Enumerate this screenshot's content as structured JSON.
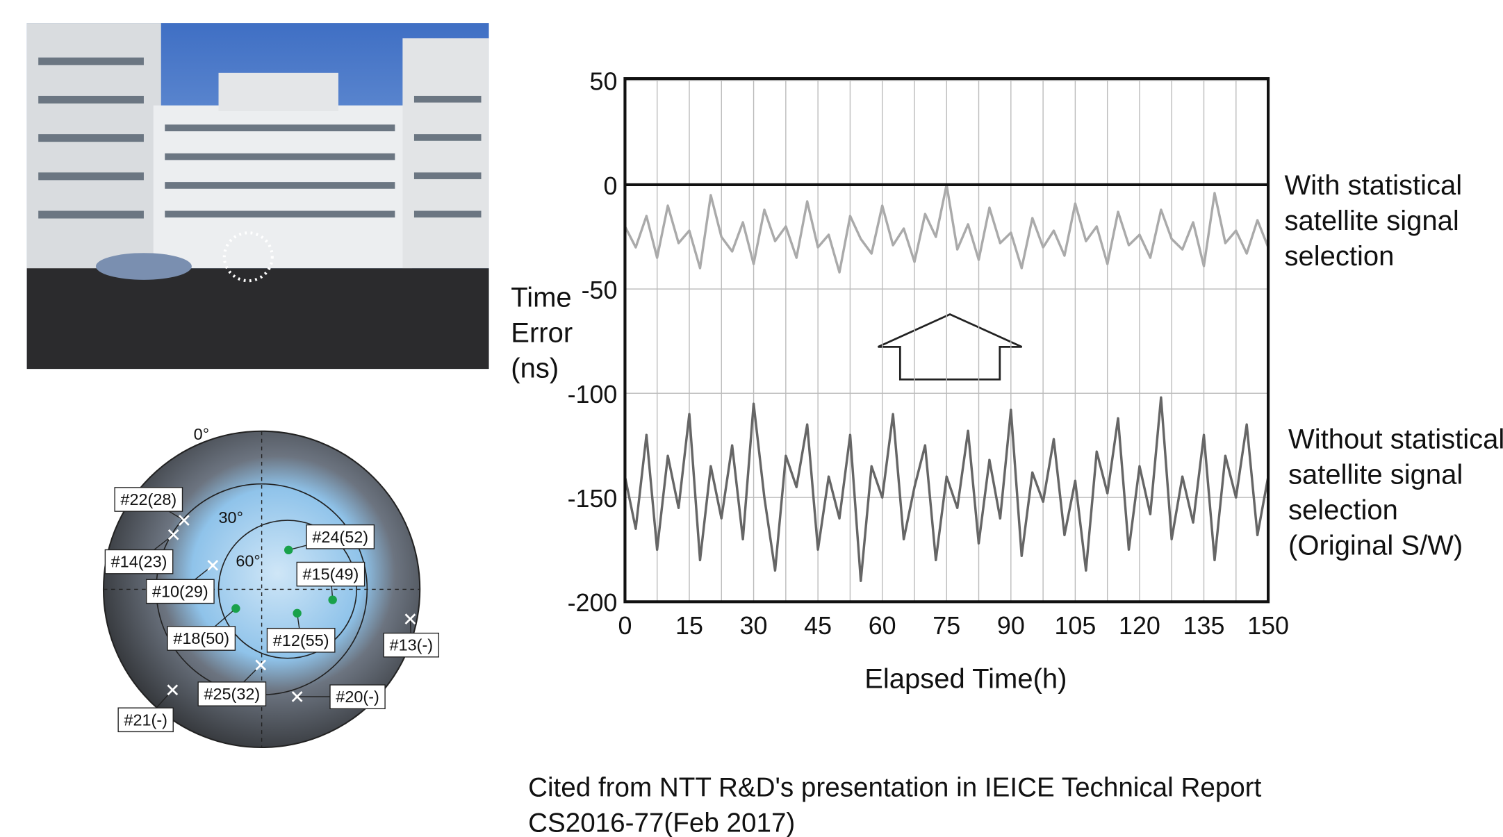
{
  "chart_data": {
    "type": "line",
    "ylabel": [
      "Time",
      "Error",
      "(ns)"
    ],
    "xlabel": "Elapsed Time(h)",
    "x": [
      0,
      2.5,
      5,
      7.5,
      10,
      12.5,
      15,
      17.5,
      20,
      22.5,
      25,
      27.5,
      30,
      32.5,
      35,
      37.5,
      40,
      42.5,
      45,
      47.5,
      50,
      52.5,
      55,
      57.5,
      60,
      62.5,
      65,
      67.5,
      70,
      72.5,
      75,
      77.5,
      80,
      82.5,
      85,
      87.5,
      90,
      92.5,
      95,
      97.5,
      100,
      102.5,
      105,
      107.5,
      110,
      112.5,
      115,
      117.5,
      120,
      122.5,
      125,
      127.5,
      130,
      132.5,
      135,
      137.5,
      140,
      142.5,
      145,
      147.5,
      150
    ],
    "series": [
      {
        "color": "#aaaaaa",
        "values": [
          -20,
          -30,
          -15,
          -35,
          -10,
          -28,
          -22,
          -40,
          -5,
          -25,
          -32,
          -18,
          -38,
          -12,
          -27,
          -20,
          -35,
          -8,
          -30,
          -24,
          -42,
          -15,
          -26,
          -33,
          -10,
          -29,
          -21,
          -37,
          -14,
          -25,
          0,
          -31,
          -19,
          -36,
          -11,
          -28,
          -23,
          -40,
          -16,
          -30,
          -22,
          -34,
          -9,
          -27,
          -20,
          -38,
          -13,
          -29,
          -24,
          -35,
          -12,
          -26,
          -31,
          -18,
          -39,
          -4,
          -28,
          -22,
          -33,
          -17,
          -30
        ]
      },
      {
        "color": "#666666",
        "values": [
          -140,
          -165,
          -120,
          -175,
          -130,
          -155,
          -110,
          -180,
          -135,
          -160,
          -125,
          -170,
          -105,
          -150,
          -185,
          -130,
          -145,
          -115,
          -175,
          -140,
          -160,
          -120,
          -190,
          -135,
          -150,
          -110,
          -170,
          -145,
          -125,
          -180,
          -140,
          -155,
          -118,
          -172,
          -132,
          -160,
          -108,
          -178,
          -138,
          -152,
          -122,
          -168,
          -142,
          -185,
          -128,
          -148,
          -112,
          -175,
          -135,
          -158,
          -102,
          -170,
          -140,
          -162,
          -120,
          -180,
          -130,
          -150,
          -115,
          -168,
          -140
        ]
      }
    ],
    "annotations": [
      {
        "lines": [
          "With statistical",
          "satellite signal",
          "selection"
        ]
      },
      {
        "lines": [
          "Without statistical",
          "satellite signal",
          "selection",
          "(Original S/W)"
        ]
      }
    ],
    "xlim": [
      0,
      150
    ],
    "xticks": [
      0,
      15,
      30,
      45,
      60,
      75,
      90,
      105,
      120,
      135,
      150
    ],
    "ylim": [
      -200,
      50
    ],
    "yticks": [
      -200,
      -150,
      -100,
      -50,
      0,
      50
    ],
    "grid": true,
    "zero_line": true
  },
  "skyplot": {
    "elevation_labels": [
      "0°",
      "30°",
      "60°"
    ],
    "satellites": [
      {
        "label": "#22(28)",
        "marker": "x"
      },
      {
        "label": "#14(23)",
        "marker": "x"
      },
      {
        "label": "#10(29)",
        "marker": "x"
      },
      {
        "label": "#18(50)",
        "marker": "dot"
      },
      {
        "label": "#25(32)",
        "marker": "x"
      },
      {
        "label": "#21(-)",
        "marker": "x"
      },
      {
        "label": "#24(52)",
        "marker": "dot"
      },
      {
        "label": "#15(49)",
        "marker": "dot"
      },
      {
        "label": "#12(55)",
        "marker": "dot"
      },
      {
        "label": "#13(-)",
        "marker": "x"
      },
      {
        "label": "#20(-)",
        "marker": "x"
      }
    ]
  },
  "caption": [
    "Cited from NTT R&D's presentation in IEICE Technical Report",
    "CS2016-77(Feb 2017)"
  ]
}
